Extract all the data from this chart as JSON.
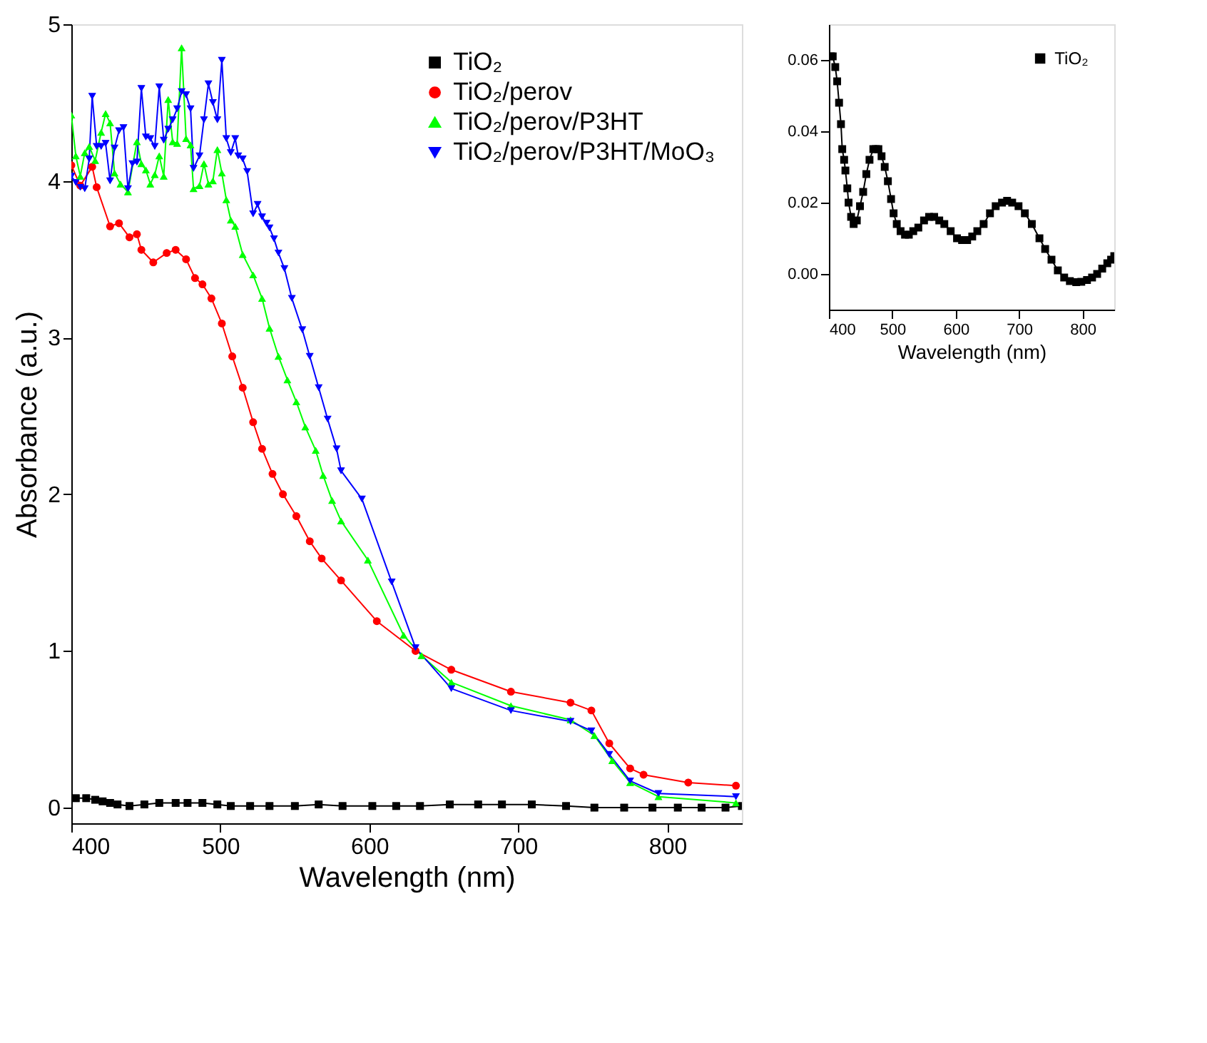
{
  "chart_data": [
    {
      "type": "line",
      "xlabel": "Wavelength (nm)",
      "ylabel": "Absorbance (a.u.)",
      "xlim": [
        400,
        850
      ],
      "ylim": [
        -0.1,
        5
      ],
      "xticks": [
        400,
        500,
        600,
        700,
        800
      ],
      "yticks": [
        0,
        1,
        2,
        3,
        4,
        5
      ],
      "legend": "top right",
      "grid": false,
      "line_style": "solid",
      "series": [
        {
          "name": "TiO₂",
          "color": "#000000",
          "marker": "square",
          "x": [
            403,
            410,
            416,
            421,
            426,
            431,
            439,
            449,
            459,
            470,
            478,
            488,
            498,
            507,
            520,
            533,
            550,
            566,
            582,
            602,
            618,
            634,
            654,
            673,
            689,
            709,
            732,
            751,
            771,
            790,
            807,
            823,
            839,
            850
          ],
          "values": [
            0.06,
            0.06,
            0.05,
            0.04,
            0.03,
            0.02,
            0.01,
            0.02,
            0.03,
            0.03,
            0.03,
            0.03,
            0.02,
            0.01,
            0.01,
            0.01,
            0.01,
            0.02,
            0.01,
            0.01,
            0.01,
            0.01,
            0.02,
            0.02,
            0.02,
            0.02,
            0.01,
            0.0,
            0.0,
            0.0,
            0.0,
            0.0,
            0.0,
            0.01
          ]
        },
        {
          "name": "TiO₂/perov",
          "color": "#ff0000",
          "marker": "circle",
          "x": [
            400,
            406,
            414,
            417,
            426,
            432,
            439,
            444,
            447,
            455,
            464,
            470,
            477,
            483,
            488,
            494,
            501,
            508,
            515,
            522,
            528,
            535,
            542,
            551,
            560,
            568,
            581,
            605,
            631,
            655,
            695,
            735,
            749,
            761,
            775,
            784,
            814,
            846
          ],
          "values": [
            4.1,
            3.97,
            4.09,
            3.96,
            3.71,
            3.73,
            3.64,
            3.66,
            3.56,
            3.48,
            3.54,
            3.56,
            3.5,
            3.38,
            3.34,
            3.25,
            3.09,
            2.88,
            2.68,
            2.46,
            2.29,
            2.13,
            2.0,
            1.86,
            1.7,
            1.59,
            1.45,
            1.19,
            1.0,
            0.88,
            0.74,
            0.67,
            0.62,
            0.41,
            0.25,
            0.21,
            0.16,
            0.14
          ]
        },
        {
          "name": "TiO₂/perov/P3HT",
          "color": "#00ff00",
          "marker": "triangle",
          "x": [
            400,
            403,
            406,
            409,
            412,
            416,
            420,
            423,
            426,
            429,
            433,
            438,
            444,
            447,
            450,
            453,
            456,
            459,
            462,
            465,
            468,
            471,
            474,
            477,
            480,
            482,
            486,
            489,
            492,
            495,
            498,
            501,
            504,
            507,
            510,
            515,
            522,
            528,
            533,
            539,
            545,
            551,
            557,
            564,
            569,
            575,
            581,
            599,
            623,
            635,
            655,
            695,
            735,
            751,
            763,
            775,
            794,
            846
          ],
          "values": [
            4.42,
            4.16,
            4.03,
            4.18,
            4.22,
            4.13,
            4.31,
            4.43,
            4.37,
            4.05,
            3.98,
            3.93,
            4.25,
            4.11,
            4.07,
            3.98,
            4.04,
            4.16,
            4.03,
            4.52,
            4.25,
            4.24,
            4.85,
            4.27,
            4.23,
            3.95,
            3.97,
            4.11,
            3.98,
            4.0,
            4.2,
            4.05,
            3.88,
            3.75,
            3.71,
            3.53,
            3.4,
            3.25,
            3.06,
            2.88,
            2.73,
            2.59,
            2.43,
            2.28,
            2.12,
            1.96,
            1.83,
            1.58,
            1.1,
            0.97,
            0.8,
            0.65,
            0.56,
            0.46,
            0.3,
            0.16,
            0.07,
            0.03
          ]
        },
        {
          "name": "TiO₂/perov/P3HT/MoO₃",
          "color": "#0000ff",
          "marker": "triangle-down",
          "x": [
            400,
            403,
            406,
            409,
            412,
            414,
            417,
            420,
            423,
            426,
            429,
            432,
            435,
            438,
            441,
            444,
            447,
            450,
            453,
            456,
            459,
            462,
            465,
            468,
            471,
            474,
            477,
            480,
            482,
            486,
            489,
            492,
            495,
            498,
            501,
            504,
            507,
            510,
            512,
            515,
            518,
            522,
            525,
            528,
            531,
            533,
            536,
            539,
            543,
            548,
            555,
            560,
            566,
            572,
            578,
            581,
            595,
            615,
            631,
            655,
            695,
            735,
            749,
            761,
            775,
            794,
            846
          ],
          "values": [
            4.03,
            3.99,
            3.96,
            3.95,
            4.14,
            4.54,
            4.22,
            4.22,
            4.24,
            4.0,
            4.21,
            4.32,
            4.34,
            3.95,
            4.11,
            4.12,
            4.59,
            4.28,
            4.27,
            4.22,
            4.6,
            4.26,
            4.33,
            4.39,
            4.46,
            4.57,
            4.55,
            4.46,
            4.08,
            4.16,
            4.39,
            4.62,
            4.5,
            4.39,
            4.77,
            4.27,
            4.18,
            4.27,
            4.16,
            4.14,
            4.06,
            3.79,
            3.85,
            3.77,
            3.73,
            3.7,
            3.63,
            3.54,
            3.44,
            3.25,
            3.05,
            2.88,
            2.68,
            2.48,
            2.29,
            2.15,
            1.97,
            1.44,
            1.02,
            0.76,
            0.62,
            0.55,
            0.49,
            0.34,
            0.17,
            0.09,
            0.07
          ]
        }
      ]
    },
    {
      "type": "line",
      "xlabel": "Wavelength (nm)",
      "xlim": [
        400,
        850
      ],
      "ylim": [
        -0.01,
        0.07
      ],
      "xticks": [
        400,
        500,
        600,
        700,
        800
      ],
      "yticks": [
        {
          "value": 0,
          "label": "0.00"
        },
        {
          "value": 0.02,
          "label": "0.02"
        },
        {
          "value": 0.04,
          "label": "0.04"
        },
        {
          "value": 0.06,
          "label": "0.06"
        }
      ],
      "legend": "top right",
      "grid": false,
      "line_style": "solid",
      "series": [
        {
          "name": "TiO₂",
          "color": "#000000",
          "marker": "square",
          "x": [
            403,
            406,
            410,
            413,
            416,
            419,
            421,
            424,
            426,
            429,
            431,
            435,
            439,
            444,
            449,
            454,
            459,
            464,
            470,
            474,
            478,
            483,
            488,
            493,
            498,
            502,
            507,
            513,
            520,
            526,
            533,
            541,
            550,
            558,
            566,
            574,
            582,
            592,
            602,
            610,
            618,
            626,
            634,
            644,
            654,
            663,
            673,
            681,
            689,
            699,
            709,
            720,
            732,
            741,
            751,
            761,
            771,
            780,
            790,
            798,
            807,
            815,
            823,
            831,
            839,
            845,
            850
          ],
          "values": [
            0.061,
            0.061,
            0.058,
            0.054,
            0.048,
            0.042,
            0.035,
            0.032,
            0.029,
            0.024,
            0.02,
            0.016,
            0.014,
            0.015,
            0.019,
            0.023,
            0.028,
            0.032,
            0.035,
            0.035,
            0.035,
            0.033,
            0.03,
            0.026,
            0.021,
            0.017,
            0.014,
            0.012,
            0.011,
            0.011,
            0.012,
            0.013,
            0.015,
            0.016,
            0.016,
            0.015,
            0.014,
            0.012,
            0.01,
            0.0095,
            0.0095,
            0.0105,
            0.012,
            0.014,
            0.017,
            0.019,
            0.02,
            0.0205,
            0.02,
            0.019,
            0.017,
            0.014,
            0.01,
            0.007,
            0.004,
            0.001,
            -0.001,
            -0.002,
            -0.0023,
            -0.0022,
            -0.0017,
            -0.001,
            0.0,
            0.0015,
            0.003,
            0.004,
            0.005
          ]
        }
      ]
    }
  ]
}
